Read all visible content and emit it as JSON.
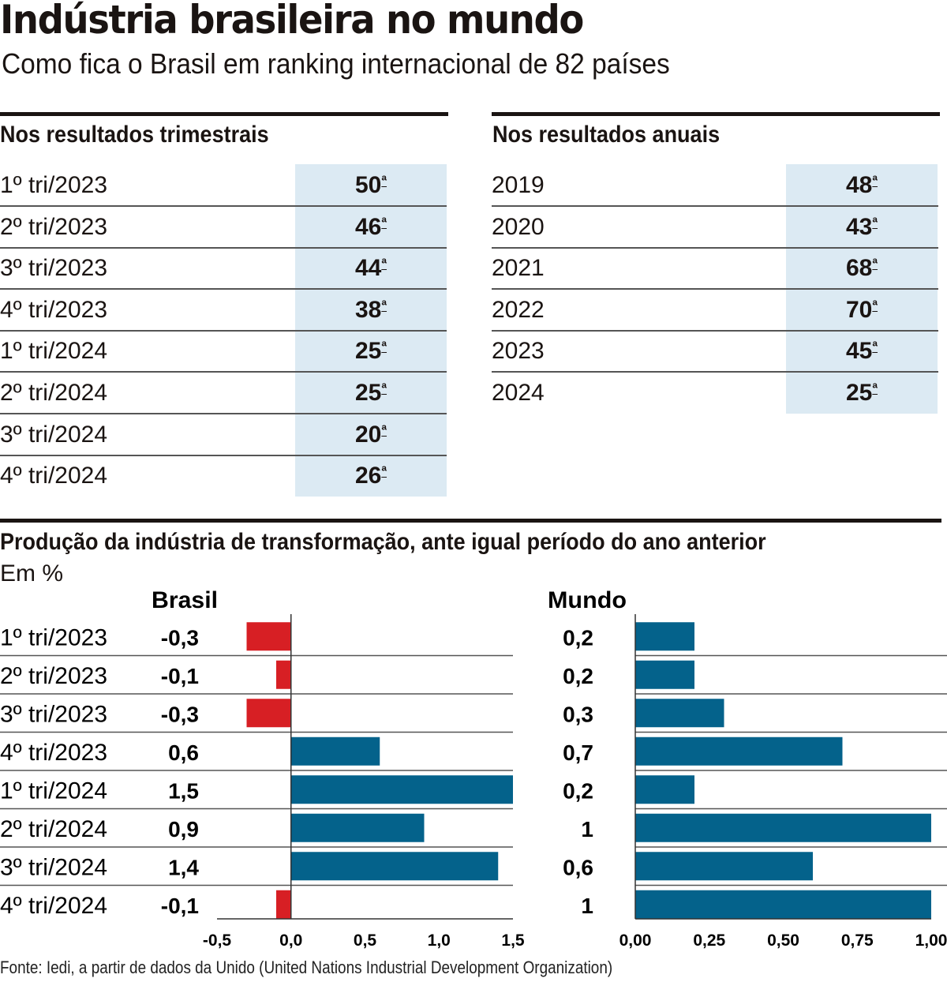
{
  "header": {
    "title": "Indústria brasileira no mundo",
    "subtitle": "Como fica o Brasil em ranking internacional de 82 países"
  },
  "quarterly_table": {
    "heading": "Nos resultados trimestrais",
    "rows": [
      {
        "label": "1º tri/2023",
        "rank": "50",
        "suffix": "ª"
      },
      {
        "label": "2º tri/2023",
        "rank": "46",
        "suffix": "ª"
      },
      {
        "label": "3º tri/2023",
        "rank": "44",
        "suffix": "ª"
      },
      {
        "label": "4º tri/2023",
        "rank": "38",
        "suffix": "ª"
      },
      {
        "label": "1º tri/2024",
        "rank": "25",
        "suffix": "ª"
      },
      {
        "label": "2º tri/2024",
        "rank": "25",
        "suffix": "ª"
      },
      {
        "label": "3º tri/2024",
        "rank": "20",
        "suffix": "ª"
      },
      {
        "label": "4º tri/2024",
        "rank": "26",
        "suffix": "ª"
      }
    ]
  },
  "annual_table": {
    "heading": "Nos resultados anuais",
    "rows": [
      {
        "label": "2019",
        "rank": "48",
        "suffix": "ª"
      },
      {
        "label": "2020",
        "rank": "43",
        "suffix": "ª"
      },
      {
        "label": "2021",
        "rank": "68",
        "suffix": "ª"
      },
      {
        "label": "2022",
        "rank": "70",
        "suffix": "ª"
      },
      {
        "label": "2023",
        "rank": "45",
        "suffix": "ª"
      },
      {
        "label": "2024",
        "rank": "25",
        "suffix": "ª"
      }
    ]
  },
  "production": {
    "heading": "Produção da indústria de transformação, ante igual período do ano anterior",
    "unit": "Em %"
  },
  "source": "Fonte: Iedi, a partir de dados da Unido (United Nations Industrial Development Organization)",
  "colors": {
    "positive": "#04628b",
    "negative": "#d71f24",
    "table_highlight": "#dceaf3",
    "text": "#1a1412"
  },
  "chart_data": [
    {
      "type": "bar",
      "orientation": "horizontal",
      "title": "Brasil",
      "categories": [
        "1º tri/2023",
        "2º tri/2023",
        "3º tri/2023",
        "4º tri/2023",
        "1º tri/2024",
        "2º tri/2024",
        "3º tri/2024",
        "4º tri/2024"
      ],
      "values": [
        -0.3,
        -0.1,
        -0.3,
        0.6,
        1.5,
        0.9,
        1.4,
        -0.1
      ],
      "value_labels": [
        "-0,3",
        "-0,1",
        "-0,3",
        "0,6",
        "1,5",
        "0,9",
        "1,4",
        "-0,1"
      ],
      "xlim": [
        -0.5,
        1.5
      ],
      "ticks": [
        -0.5,
        0.0,
        0.5,
        1.0,
        1.5
      ],
      "tick_labels": [
        "-0,5",
        "0,0",
        "0,5",
        "1,0",
        "1,5"
      ],
      "xlabel": "",
      "ylabel": "",
      "grid": false
    },
    {
      "type": "bar",
      "orientation": "horizontal",
      "title": "Mundo",
      "categories": [
        "1º tri/2023",
        "2º tri/2023",
        "3º tri/2023",
        "4º tri/2023",
        "1º tri/2024",
        "2º tri/2024",
        "3º tri/2024",
        "4º tri/2024"
      ],
      "values": [
        0.2,
        0.2,
        0.3,
        0.7,
        0.2,
        1.0,
        0.6,
        1.0
      ],
      "value_labels": [
        "0,2",
        "0,2",
        "0,3",
        "0,7",
        "0,2",
        "1",
        "0,6",
        "1"
      ],
      "xlim": [
        0,
        1.0
      ],
      "ticks": [
        0,
        0.25,
        0.5,
        0.75,
        1.0
      ],
      "tick_labels": [
        "0,00",
        "0,25",
        "0,50",
        "0,75",
        "1,00"
      ],
      "xlabel": "",
      "ylabel": "",
      "grid": false
    }
  ]
}
